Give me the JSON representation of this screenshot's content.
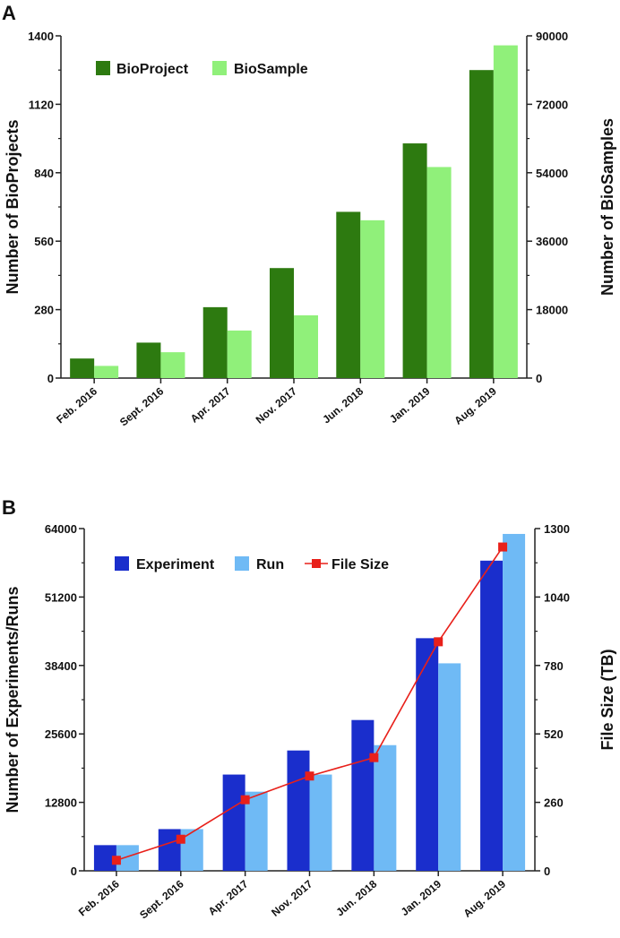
{
  "chart_data": [
    {
      "panel": "A",
      "type": "bar",
      "categories": [
        "Feb. 2016",
        "Sept. 2016",
        "Apr. 2017",
        "Nov. 2017",
        "Jun. 2018",
        "Jan. 2019",
        "Aug. 2019"
      ],
      "series": [
        {
          "name": "BioProject",
          "axis": "left",
          "color": "#2d7a10",
          "values": [
            80,
            145,
            290,
            450,
            680,
            960,
            1260
          ]
        },
        {
          "name": "BioSample",
          "axis": "right",
          "color": "#90f07a",
          "values": [
            3200,
            6800,
            12500,
            16500,
            41500,
            55500,
            87500
          ]
        }
      ],
      "ylabel": "Number of BioProjects",
      "y2label": "Number of BioSamples",
      "ylim": [
        0,
        1400
      ],
      "y2lim": [
        0,
        90000
      ],
      "yticks": [
        "0",
        "280",
        "560",
        "840",
        "1120",
        "1400"
      ],
      "y2ticks": [
        "0",
        "18000",
        "36000",
        "54000",
        "72000",
        "90000"
      ],
      "legend": [
        "BioProject",
        "BioSample"
      ],
      "legend_position": "top-left"
    },
    {
      "panel": "B",
      "type": "bar",
      "categories": [
        "Feb. 2016",
        "Sept. 2016",
        "Apr. 2017",
        "Nov. 2017",
        "Jun. 2018",
        "Jan. 2019",
        "Aug. 2019"
      ],
      "series": [
        {
          "name": "Experiment",
          "axis": "left",
          "color": "#1a2ecc",
          "values": [
            4800,
            7800,
            18000,
            22500,
            28200,
            43500,
            58000
          ]
        },
        {
          "name": "Run",
          "axis": "left",
          "color": "#6fbaf5",
          "values": [
            4800,
            7800,
            14800,
            18000,
            23500,
            38800,
            63000
          ]
        },
        {
          "name": "File Size",
          "axis": "right",
          "type": "line",
          "color": "#e8201a",
          "values": [
            40,
            120,
            270,
            360,
            430,
            870,
            1230
          ]
        }
      ],
      "ylabel": "Number of Experiments/Runs",
      "y2label": "File Size (TB)",
      "ylim": [
        0,
        64000
      ],
      "y2lim": [
        0,
        1300
      ],
      "yticks": [
        "0",
        "12800",
        "25600",
        "38400",
        "51200",
        "64000"
      ],
      "y2ticks": [
        "0",
        "260",
        "520",
        "780",
        "1040",
        "1300"
      ],
      "legend": [
        "Experiment",
        "Run",
        "File Size"
      ],
      "legend_position": "top-left"
    }
  ]
}
